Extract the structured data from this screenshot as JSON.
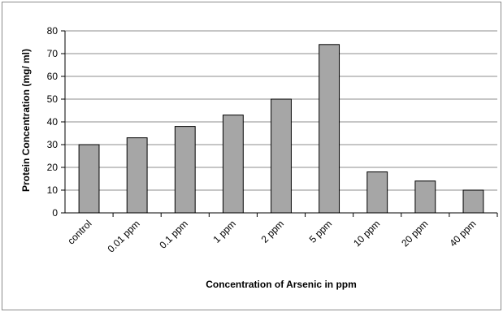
{
  "chart_data": {
    "type": "bar",
    "title": "",
    "xlabel": "Concentration of Arsenic in ppm",
    "ylabel": "Protein Concentration (mg/ ml)",
    "categories": [
      "control",
      "0.01 ppm",
      "0.1 ppm",
      "1 ppm",
      "2 ppm",
      "5 ppm",
      "10 ppm",
      "20 ppm",
      "40 ppm"
    ],
    "values": [
      30,
      33,
      38,
      43,
      50,
      74,
      18,
      14,
      10
    ],
    "ylim": [
      0,
      80
    ],
    "yticks": [
      0,
      10,
      20,
      30,
      40,
      50,
      60,
      70,
      80
    ],
    "grid": true,
    "legend": "none",
    "bar_color": "#a6a6a6",
    "bar_edge_color": "#000000",
    "grid_color": "#8c8c8c"
  }
}
